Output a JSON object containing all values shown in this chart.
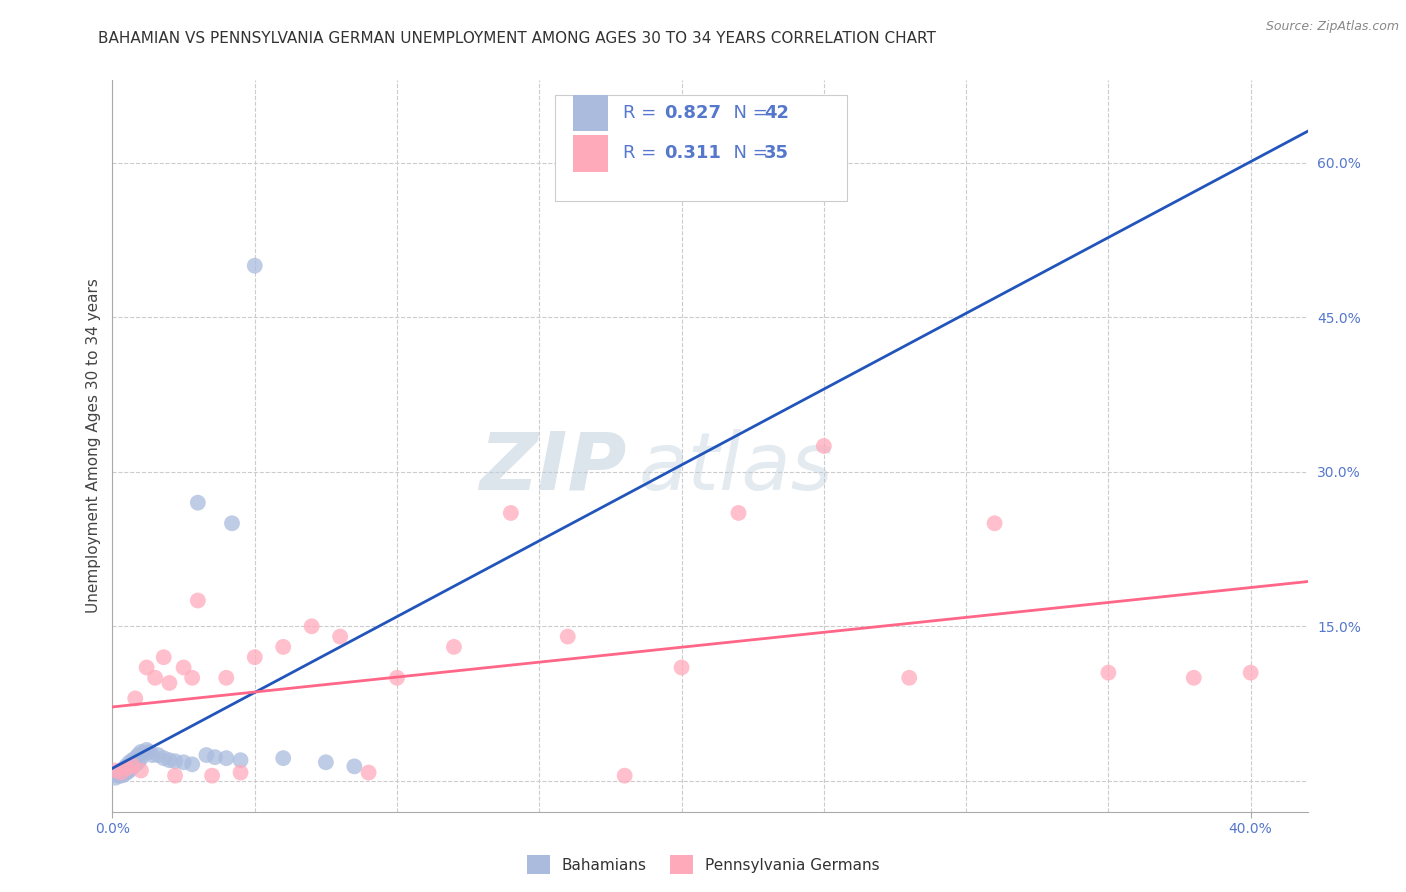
{
  "title": "BAHAMIAN VS PENNSYLVANIA GERMAN UNEMPLOYMENT AMONG AGES 30 TO 34 YEARS CORRELATION CHART",
  "source": "Source: ZipAtlas.com",
  "ylabel": "Unemployment Among Ages 30 to 34 years",
  "xlim": [
    0.0,
    0.42
  ],
  "ylim": [
    -0.03,
    0.68
  ],
  "bahamian_color": "#AABBDD",
  "penn_german_color": "#FFAABB",
  "bahamian_line_color": "#2255BB",
  "penn_german_line_color": "#FF6688",
  "legend_text_color": "#5577CC",
  "R_bahamian": 0.827,
  "N_bahamian": 42,
  "R_penn": 0.311,
  "N_penn": 35,
  "watermark_zip": "ZIP",
  "watermark_atlas": "atlas",
  "background_color": "#FFFFFF",
  "grid_color": "#CCCCCC",
  "title_fontsize": 11,
  "axis_label_fontsize": 11,
  "tick_fontsize": 10,
  "right_tick_color": "#5577CC",
  "ytick_values": [
    0.0,
    0.15,
    0.3,
    0.45,
    0.6
  ],
  "bah_x": [
    0.001,
    0.002,
    0.002,
    0.003,
    0.003,
    0.003,
    0.004,
    0.004,
    0.004,
    0.005,
    0.005,
    0.005,
    0.006,
    0.006,
    0.007,
    0.007,
    0.008,
    0.008,
    0.009,
    0.009,
    0.01,
    0.01,
    0.011,
    0.012,
    0.013,
    0.014,
    0.016,
    0.018,
    0.02,
    0.022,
    0.025,
    0.028,
    0.03,
    0.033,
    0.036,
    0.04,
    0.045,
    0.05,
    0.06,
    0.075,
    0.085,
    0.042
  ],
  "bah_y": [
    0.003,
    0.005,
    0.007,
    0.005,
    0.008,
    0.01,
    0.006,
    0.009,
    0.012,
    0.008,
    0.01,
    0.015,
    0.01,
    0.018,
    0.013,
    0.02,
    0.016,
    0.022,
    0.018,
    0.025,
    0.022,
    0.028,
    0.027,
    0.03,
    0.028,
    0.025,
    0.025,
    0.022,
    0.02,
    0.019,
    0.018,
    0.016,
    0.27,
    0.025,
    0.023,
    0.022,
    0.02,
    0.5,
    0.022,
    0.018,
    0.014,
    0.25
  ],
  "penn_x": [
    0.001,
    0.003,
    0.005,
    0.007,
    0.008,
    0.01,
    0.012,
    0.015,
    0.018,
    0.02,
    0.022,
    0.025,
    0.028,
    0.03,
    0.035,
    0.04,
    0.045,
    0.05,
    0.06,
    0.07,
    0.08,
    0.09,
    0.1,
    0.12,
    0.14,
    0.16,
    0.18,
    0.2,
    0.22,
    0.25,
    0.28,
    0.31,
    0.35,
    0.38,
    0.4
  ],
  "penn_y": [
    0.01,
    0.008,
    0.012,
    0.015,
    0.08,
    0.01,
    0.11,
    0.1,
    0.12,
    0.095,
    0.005,
    0.11,
    0.1,
    0.175,
    0.005,
    0.1,
    0.008,
    0.12,
    0.13,
    0.15,
    0.14,
    0.008,
    0.1,
    0.13,
    0.26,
    0.14,
    0.005,
    0.11,
    0.26,
    0.325,
    0.1,
    0.25,
    0.105,
    0.1,
    0.105
  ]
}
